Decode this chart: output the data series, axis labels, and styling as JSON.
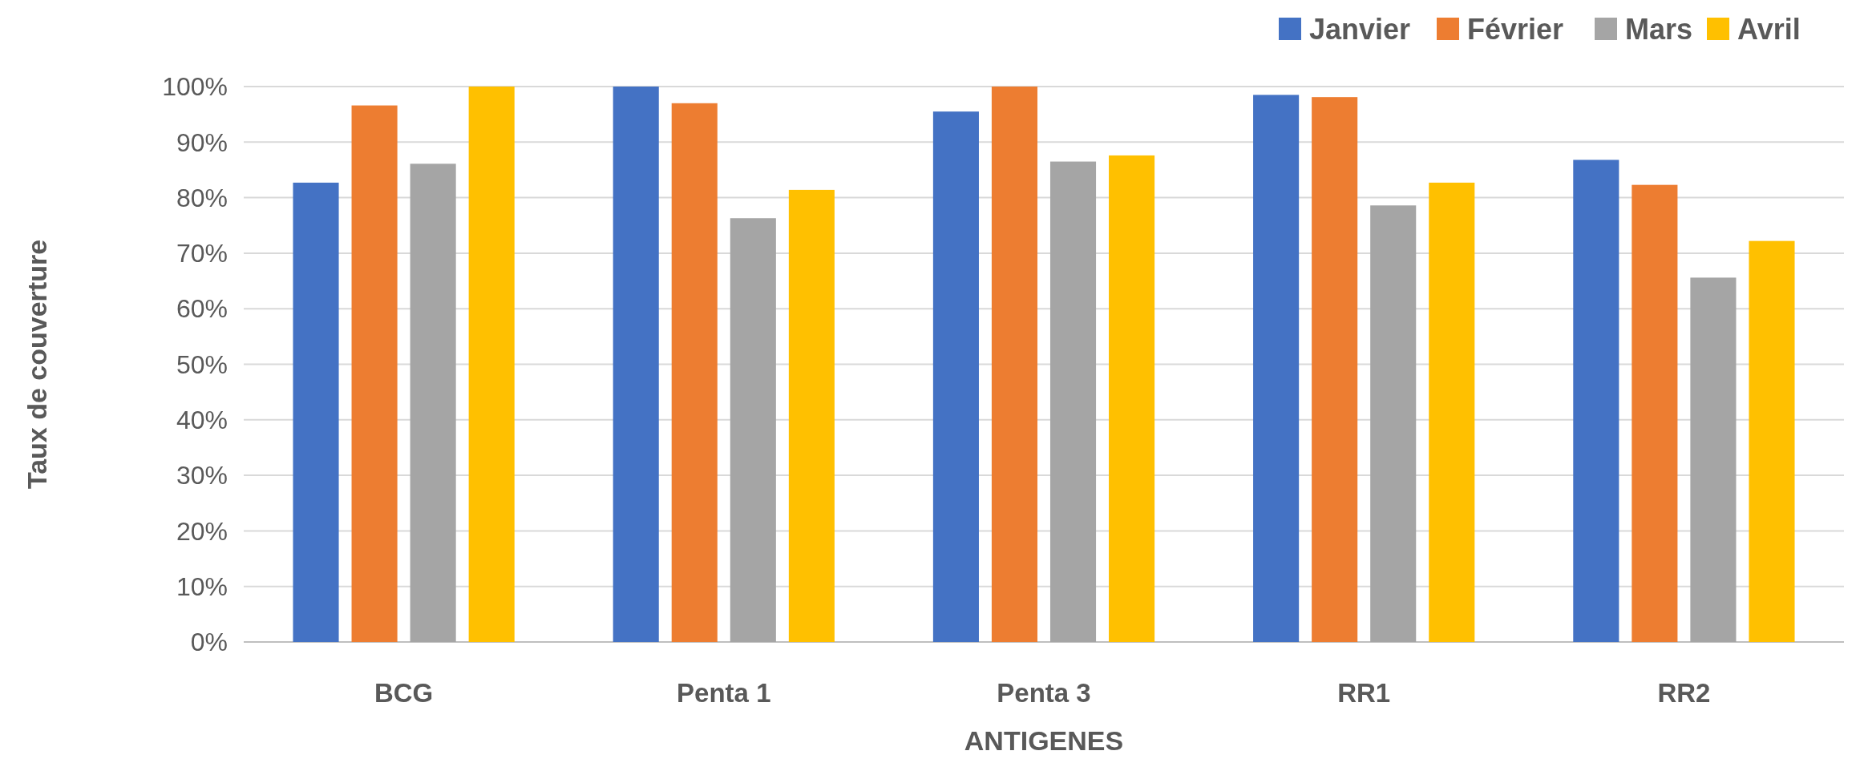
{
  "chart_data": {
    "type": "bar",
    "xlabel": "ANTIGENES",
    "ylabel": "Taux de couverture",
    "categories": [
      "BCG",
      "Penta 1",
      "Penta 3",
      "RR1",
      "RR2"
    ],
    "series": [
      {
        "name": "Janvier",
        "color": "#4472c4",
        "values": [
          82.7,
          100,
          95.5,
          98.5,
          86.8
        ]
      },
      {
        "name": "Février",
        "color": "#ed7d31",
        "values": [
          96.6,
          97,
          100,
          98.1,
          82.3
        ]
      },
      {
        "name": "Mars",
        "color": "#a5a5a5",
        "values": [
          86.1,
          76.3,
          86.5,
          78.6,
          65.6
        ]
      },
      {
        "name": "Avril",
        "color": "#ffc000",
        "values": [
          100,
          81.4,
          87.6,
          82.7,
          72.2
        ]
      }
    ],
    "ylim": [
      0,
      100
    ],
    "yticks": [
      {
        "value": 0,
        "label": "0%"
      },
      {
        "value": 10,
        "label": "10%"
      },
      {
        "value": 20,
        "label": "20%"
      },
      {
        "value": 30,
        "label": "30%"
      },
      {
        "value": 40,
        "label": "40%"
      },
      {
        "value": 50,
        "label": "50%"
      },
      {
        "value": 60,
        "label": "60%"
      },
      {
        "value": 70,
        "label": "70%"
      },
      {
        "value": 80,
        "label": "80%"
      },
      {
        "value": 90,
        "label": "90%"
      },
      {
        "value": 100,
        "label": "100%"
      }
    ],
    "grid": "y",
    "legend": "top right"
  }
}
